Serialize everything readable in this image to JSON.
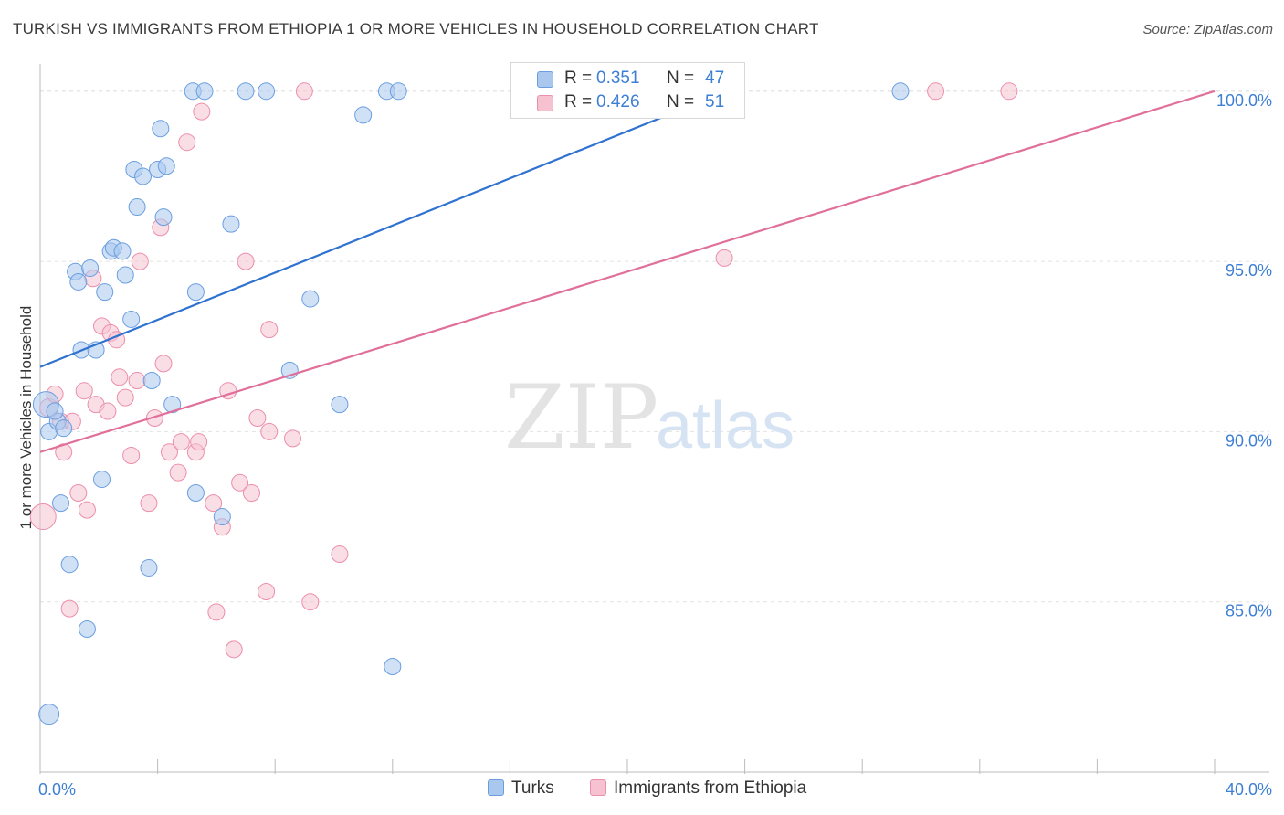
{
  "title": "TURKISH VS IMMIGRANTS FROM ETHIOPIA 1 OR MORE VEHICLES IN HOUSEHOLD CORRELATION CHART",
  "source": "Source: ZipAtlas.com",
  "watermark": {
    "zip": "ZIP",
    "atlas": "atlas"
  },
  "colors": {
    "turks_fill": "#aac8ee",
    "turks_stroke": "#6a9ee0",
    "turks_line": "#2f72d0",
    "eth_fill": "#f6c2d2",
    "eth_stroke": "#ec8eab",
    "eth_line": "#e0709a",
    "tick_text": "#3d7fd4",
    "grid": "#e2e2e2"
  },
  "legend": {
    "r_label": "R =",
    "n_label": "N =",
    "turks": {
      "r": "0.351",
      "n": "47"
    },
    "ethiopia": {
      "r": "0.426",
      "n": "51"
    }
  },
  "bottom_legend": {
    "turks": "Turks",
    "ethiopia": "Immigrants from Ethiopia"
  },
  "chart_data": {
    "type": "scatter",
    "title": "TURKISH VS IMMIGRANTS FROM ETHIOPIA 1 OR MORE VEHICLES IN HOUSEHOLD CORRELATION CHART",
    "xlabel": "",
    "ylabel": "1 or more Vehicles in Household",
    "xlim": [
      0,
      40
    ],
    "ylim": [
      80,
      100.8
    ],
    "x_tick_labels": [
      {
        "value": 0,
        "label": "0.0%"
      },
      {
        "value": 40,
        "label": "40.0%"
      }
    ],
    "y_tick_labels": [
      {
        "value": 85,
        "label": "85.0%"
      },
      {
        "value": 90,
        "label": "90.0%"
      },
      {
        "value": 95,
        "label": "95.0%"
      },
      {
        "value": 100,
        "label": "100.0%"
      }
    ],
    "series": [
      {
        "name": "Turks",
        "r": 0.351,
        "n": 47,
        "trend": {
          "x": [
            0,
            23.4
          ],
          "y": [
            91.9,
            100.0
          ]
        },
        "points": [
          {
            "x": 0.2,
            "y": 90.8,
            "s": 14
          },
          {
            "x": 0.3,
            "y": 90.0,
            "s": 9
          },
          {
            "x": 0.6,
            "y": 90.3,
            "s": 9
          },
          {
            "x": 0.8,
            "y": 90.1,
            "s": 9
          },
          {
            "x": 0.7,
            "y": 87.9,
            "s": 9
          },
          {
            "x": 1.0,
            "y": 86.1,
            "s": 9
          },
          {
            "x": 1.6,
            "y": 84.2,
            "s": 9
          },
          {
            "x": 0.3,
            "y": 81.7,
            "s": 11
          },
          {
            "x": 1.2,
            "y": 94.7,
            "s": 9
          },
          {
            "x": 1.3,
            "y": 94.4,
            "s": 9
          },
          {
            "x": 1.7,
            "y": 94.8,
            "s": 9
          },
          {
            "x": 1.4,
            "y": 92.4,
            "s": 9
          },
          {
            "x": 1.9,
            "y": 92.4,
            "s": 9
          },
          {
            "x": 2.1,
            "y": 88.6,
            "s": 9
          },
          {
            "x": 2.2,
            "y": 94.1,
            "s": 9
          },
          {
            "x": 2.4,
            "y": 95.3,
            "s": 9
          },
          {
            "x": 2.5,
            "y": 95.4,
            "s": 9
          },
          {
            "x": 2.8,
            "y": 95.3,
            "s": 9
          },
          {
            "x": 2.9,
            "y": 94.6,
            "s": 9
          },
          {
            "x": 3.1,
            "y": 93.3,
            "s": 9
          },
          {
            "x": 3.2,
            "y": 97.7,
            "s": 9
          },
          {
            "x": 3.3,
            "y": 96.6,
            "s": 9
          },
          {
            "x": 3.5,
            "y": 97.5,
            "s": 9
          },
          {
            "x": 3.8,
            "y": 91.5,
            "s": 9
          },
          {
            "x": 4.0,
            "y": 97.7,
            "s": 9
          },
          {
            "x": 4.1,
            "y": 98.9,
            "s": 9
          },
          {
            "x": 4.2,
            "y": 96.3,
            "s": 9
          },
          {
            "x": 4.3,
            "y": 97.8,
            "s": 9
          },
          {
            "x": 3.7,
            "y": 86.0,
            "s": 9
          },
          {
            "x": 4.5,
            "y": 90.8,
            "s": 9
          },
          {
            "x": 5.2,
            "y": 100.0,
            "s": 9
          },
          {
            "x": 5.6,
            "y": 100.0,
            "s": 9
          },
          {
            "x": 5.3,
            "y": 94.1,
            "s": 9
          },
          {
            "x": 5.3,
            "y": 88.2,
            "s": 9
          },
          {
            "x": 6.2,
            "y": 87.5,
            "s": 9
          },
          {
            "x": 6.5,
            "y": 96.1,
            "s": 9
          },
          {
            "x": 7.0,
            "y": 100.0,
            "s": 9
          },
          {
            "x": 7.7,
            "y": 100.0,
            "s": 9
          },
          {
            "x": 8.5,
            "y": 91.8,
            "s": 9
          },
          {
            "x": 9.2,
            "y": 93.9,
            "s": 9
          },
          {
            "x": 10.2,
            "y": 90.8,
            "s": 9
          },
          {
            "x": 11.0,
            "y": 99.3,
            "s": 9
          },
          {
            "x": 11.8,
            "y": 100.0,
            "s": 9
          },
          {
            "x": 12.2,
            "y": 100.0,
            "s": 9
          },
          {
            "x": 12.0,
            "y": 83.1,
            "s": 9
          },
          {
            "x": 29.3,
            "y": 100.0,
            "s": 9
          },
          {
            "x": 0.5,
            "y": 90.6,
            "s": 9
          }
        ]
      },
      {
        "name": "Immigrants from Ethiopia",
        "r": 0.426,
        "n": 51,
        "trend": {
          "x": [
            0,
            40
          ],
          "y": [
            89.4,
            100.0
          ]
        },
        "points": [
          {
            "x": 0.1,
            "y": 87.5,
            "s": 14
          },
          {
            "x": 0.3,
            "y": 90.7,
            "s": 10
          },
          {
            "x": 0.5,
            "y": 91.1,
            "s": 9
          },
          {
            "x": 0.7,
            "y": 90.3,
            "s": 9
          },
          {
            "x": 0.8,
            "y": 89.4,
            "s": 9
          },
          {
            "x": 1.0,
            "y": 84.8,
            "s": 9
          },
          {
            "x": 1.1,
            "y": 90.3,
            "s": 9
          },
          {
            "x": 1.3,
            "y": 88.2,
            "s": 9
          },
          {
            "x": 1.5,
            "y": 91.2,
            "s": 9
          },
          {
            "x": 1.6,
            "y": 87.7,
            "s": 9
          },
          {
            "x": 1.8,
            "y": 94.5,
            "s": 9
          },
          {
            "x": 1.9,
            "y": 90.8,
            "s": 9
          },
          {
            "x": 2.1,
            "y": 93.1,
            "s": 9
          },
          {
            "x": 2.3,
            "y": 90.6,
            "s": 9
          },
          {
            "x": 2.4,
            "y": 92.9,
            "s": 9
          },
          {
            "x": 2.6,
            "y": 92.7,
            "s": 9
          },
          {
            "x": 2.7,
            "y": 91.6,
            "s": 9
          },
          {
            "x": 2.9,
            "y": 91.0,
            "s": 9
          },
          {
            "x": 3.1,
            "y": 89.3,
            "s": 9
          },
          {
            "x": 3.3,
            "y": 91.5,
            "s": 9
          },
          {
            "x": 3.4,
            "y": 95.0,
            "s": 9
          },
          {
            "x": 3.7,
            "y": 87.9,
            "s": 9
          },
          {
            "x": 3.9,
            "y": 90.4,
            "s": 9
          },
          {
            "x": 4.1,
            "y": 96.0,
            "s": 9
          },
          {
            "x": 4.2,
            "y": 92.0,
            "s": 9
          },
          {
            "x": 4.4,
            "y": 89.4,
            "s": 9
          },
          {
            "x": 4.7,
            "y": 88.8,
            "s": 9
          },
          {
            "x": 4.8,
            "y": 89.7,
            "s": 9
          },
          {
            "x": 5.0,
            "y": 98.5,
            "s": 9
          },
          {
            "x": 5.3,
            "y": 89.4,
            "s": 9
          },
          {
            "x": 5.4,
            "y": 89.7,
            "s": 9
          },
          {
            "x": 5.5,
            "y": 99.4,
            "s": 9
          },
          {
            "x": 5.9,
            "y": 87.9,
            "s": 9
          },
          {
            "x": 6.0,
            "y": 84.7,
            "s": 9
          },
          {
            "x": 6.2,
            "y": 87.2,
            "s": 9
          },
          {
            "x": 6.4,
            "y": 91.2,
            "s": 9
          },
          {
            "x": 6.6,
            "y": 83.6,
            "s": 9
          },
          {
            "x": 6.8,
            "y": 88.5,
            "s": 9
          },
          {
            "x": 7.0,
            "y": 95.0,
            "s": 9
          },
          {
            "x": 7.2,
            "y": 88.2,
            "s": 9
          },
          {
            "x": 7.4,
            "y": 90.4,
            "s": 9
          },
          {
            "x": 7.7,
            "y": 85.3,
            "s": 9
          },
          {
            "x": 7.8,
            "y": 93.0,
            "s": 9
          },
          {
            "x": 7.8,
            "y": 90.0,
            "s": 9
          },
          {
            "x": 8.6,
            "y": 89.8,
            "s": 9
          },
          {
            "x": 9.2,
            "y": 85.0,
            "s": 9
          },
          {
            "x": 9.0,
            "y": 100.0,
            "s": 9
          },
          {
            "x": 10.2,
            "y": 86.4,
            "s": 9
          },
          {
            "x": 23.3,
            "y": 95.1,
            "s": 9
          },
          {
            "x": 30.5,
            "y": 100.0,
            "s": 9
          },
          {
            "x": 33.0,
            "y": 100.0,
            "s": 9
          }
        ]
      }
    ]
  }
}
